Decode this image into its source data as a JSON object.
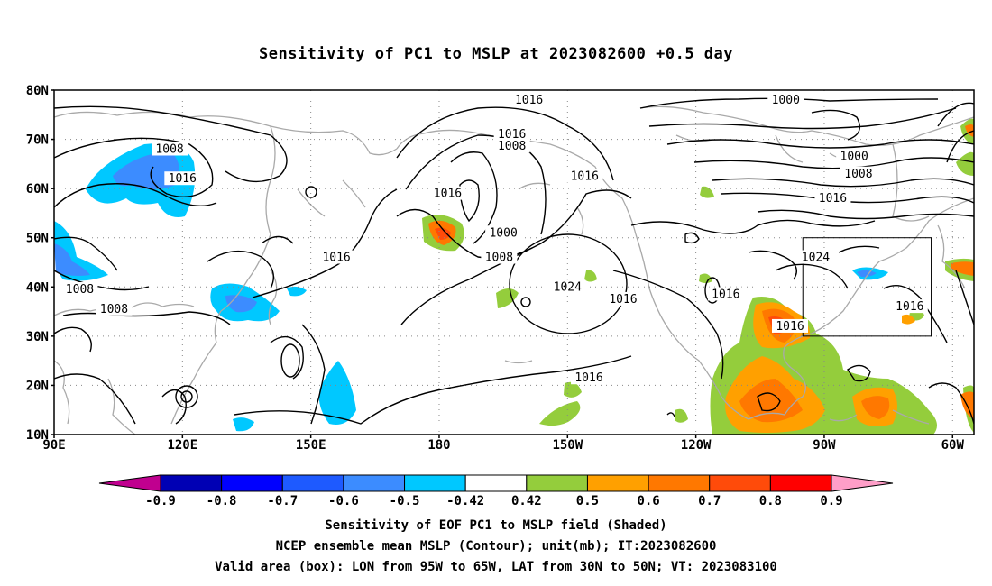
{
  "title": "Sensitivity of PC1 to MSLP at 2023082600 +0.5 day",
  "map": {
    "lon_range": [
      90,
      305
    ],
    "lat_range": [
      10,
      80
    ],
    "lat_ticks": [
      {
        "value": 80,
        "label": "80N"
      },
      {
        "value": 70,
        "label": "70N"
      },
      {
        "value": 60,
        "label": "60N"
      },
      {
        "value": 50,
        "label": "50N"
      },
      {
        "value": 40,
        "label": "40N"
      },
      {
        "value": 30,
        "label": "30N"
      },
      {
        "value": 20,
        "label": "20N"
      },
      {
        "value": 10,
        "label": "10N"
      }
    ],
    "lon_ticks": [
      {
        "value": 90,
        "label": "90E"
      },
      {
        "value": 120,
        "label": "120E"
      },
      {
        "value": 150,
        "label": "150E"
      },
      {
        "value": 180,
        "label": "180"
      },
      {
        "value": 210,
        "label": "150W"
      },
      {
        "value": 240,
        "label": "120W"
      },
      {
        "value": 270,
        "label": "90W"
      },
      {
        "value": 300,
        "label": "60W"
      }
    ],
    "valid_box": {
      "lon_min": 265,
      "lon_max": 295,
      "lat_min": 30,
      "lat_max": 50
    },
    "contour_labels": [
      {
        "text": "1016",
        "lon": 201,
        "lat": 78
      },
      {
        "text": "1000",
        "lon": 261,
        "lat": 78
      },
      {
        "text": "1016",
        "lon": 197,
        "lat": 71
      },
      {
        "text": "1008",
        "lon": 197,
        "lat": 68.6
      },
      {
        "text": "1008",
        "lon": 117,
        "lat": 68
      },
      {
        "text": "1000",
        "lon": 277,
        "lat": 66.5
      },
      {
        "text": "1008",
        "lon": 278,
        "lat": 63
      },
      {
        "text": "1016",
        "lon": 120,
        "lat": 62
      },
      {
        "text": "1016",
        "lon": 214,
        "lat": 62.5
      },
      {
        "text": "1016",
        "lon": 182,
        "lat": 59
      },
      {
        "text": "1016",
        "lon": 272,
        "lat": 58
      },
      {
        "text": "1000",
        "lon": 195,
        "lat": 51
      },
      {
        "text": "1024",
        "lon": 268,
        "lat": 46
      },
      {
        "text": "1008",
        "lon": 194,
        "lat": 46
      },
      {
        "text": "1016",
        "lon": 156,
        "lat": 46
      },
      {
        "text": "1024",
        "lon": 210,
        "lat": 40
      },
      {
        "text": "1008",
        "lon": 96,
        "lat": 39.5
      },
      {
        "text": "1016",
        "lon": 223,
        "lat": 37.5
      },
      {
        "text": "1016",
        "lon": 247,
        "lat": 38.5
      },
      {
        "text": "1008",
        "lon": 104,
        "lat": 35.5
      },
      {
        "text": "1016",
        "lon": 262,
        "lat": 32
      },
      {
        "text": "1016",
        "lon": 290,
        "lat": 36
      },
      {
        "text": "1016",
        "lon": 215,
        "lat": 21.5
      }
    ]
  },
  "colorbar": {
    "colors": [
      "#c0008f",
      "#0000b4",
      "#0000ff",
      "#1e5aff",
      "#3c8cff",
      "#00c8ff",
      "#ffffff",
      "#94cd3c",
      "#ffa000",
      "#ff7800",
      "#ff4b0a",
      "#ff0000",
      "#ff9ec8"
    ],
    "labels": [
      "-0.9",
      "-0.8",
      "-0.7",
      "-0.6",
      "-0.5",
      "-0.42",
      "0.42",
      "0.5",
      "0.6",
      "0.7",
      "0.8",
      "0.9"
    ]
  },
  "footer": {
    "line1": "Sensitivity of EOF PC1 to MSLP field (Shaded)",
    "line2": "NCEP ensemble mean MSLP (Contour); unit(mb); IT:2023082600",
    "line3": "Valid area (box): LON from 95W to 65W, LAT from 30N to 50N; VT: 2023083100"
  }
}
